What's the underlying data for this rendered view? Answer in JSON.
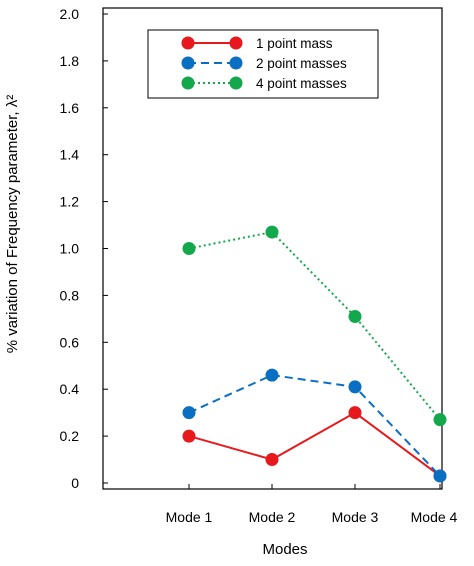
{
  "chart_data": {
    "type": "line",
    "categories": [
      "Mode 1",
      "Mode 2",
      "Mode 3",
      "Mode 4"
    ],
    "xlabel": "Modes",
    "ylabel": "% variation of Frequency parameter, λ²",
    "ylim": [
      0,
      2.0
    ],
    "y_ticks": [
      "0",
      "0.2",
      "0.4",
      "0.6",
      "0.8",
      "1.0",
      "1.2",
      "1.4",
      "1.6",
      "1.8",
      "2.0"
    ],
    "grid": false,
    "legend_position": "top-center",
    "series": [
      {
        "name": "1 point mass",
        "values": [
          0.2,
          0.1,
          0.3,
          0.03
        ],
        "color": "#e8191c",
        "line_style": "solid"
      },
      {
        "name": "2 point masses",
        "values": [
          0.3,
          0.46,
          0.41,
          0.03
        ],
        "color": "#0a6fc2",
        "line_style": "dashed"
      },
      {
        "name": "4 point masses",
        "values": [
          1.0,
          1.07,
          0.71,
          0.27
        ],
        "color": "#12a84b",
        "line_style": "dotted"
      }
    ]
  }
}
